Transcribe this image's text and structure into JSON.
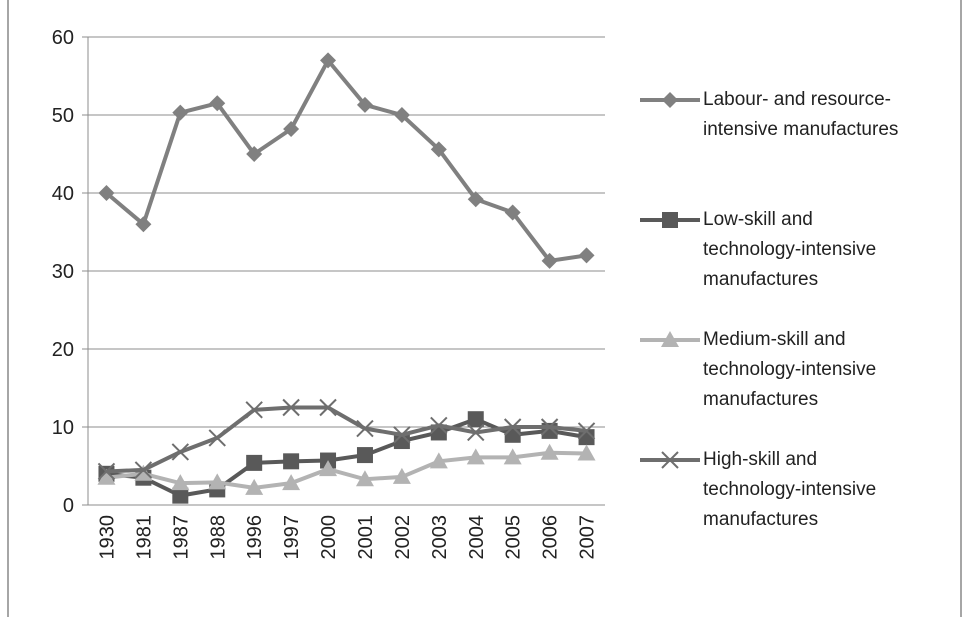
{
  "chart_data": {
    "type": "line",
    "categories": [
      "1930",
      "1981",
      "1987",
      "1988",
      "1996",
      "1997",
      "2000",
      "2001",
      "2002",
      "2003",
      "2004",
      "2005",
      "2006",
      "2007"
    ],
    "series": [
      {
        "name": "Labour- and resource-intensive manufactures",
        "color": "#808080",
        "marker": "diamond",
        "values": [
          40,
          36,
          50.3,
          51.5,
          45,
          48.2,
          57,
          51.3,
          50,
          45.6,
          39.2,
          37.5,
          31.3,
          32
        ]
      },
      {
        "name": "Low-skill and technology-intensive manufactures",
        "color": "#595959",
        "marker": "square",
        "values": [
          4,
          3.5,
          1.2,
          2,
          5.4,
          5.6,
          5.7,
          6.4,
          8.2,
          9.3,
          11,
          9,
          9.5,
          8.7
        ]
      },
      {
        "name": "Medium-skill and technology-intensive manufactures",
        "color": "#b3b3b3",
        "marker": "triangle",
        "values": [
          3.5,
          4,
          2.8,
          2.9,
          2.2,
          2.8,
          4.6,
          3.3,
          3.6,
          5.6,
          6.1,
          6.1,
          6.7,
          6.6
        ]
      },
      {
        "name": "High-skill and technology-intensive manufactures",
        "color": "#6e6e6e",
        "marker": "x",
        "values": [
          4.3,
          4.5,
          6.8,
          8.6,
          12.2,
          12.5,
          12.5,
          9.8,
          9,
          10.2,
          9.3,
          10,
          10,
          9.5
        ]
      }
    ],
    "ylim": [
      0,
      60
    ],
    "yticks": [
      0,
      10,
      20,
      30,
      40,
      50,
      60
    ],
    "grid": true,
    "legend": "right"
  }
}
